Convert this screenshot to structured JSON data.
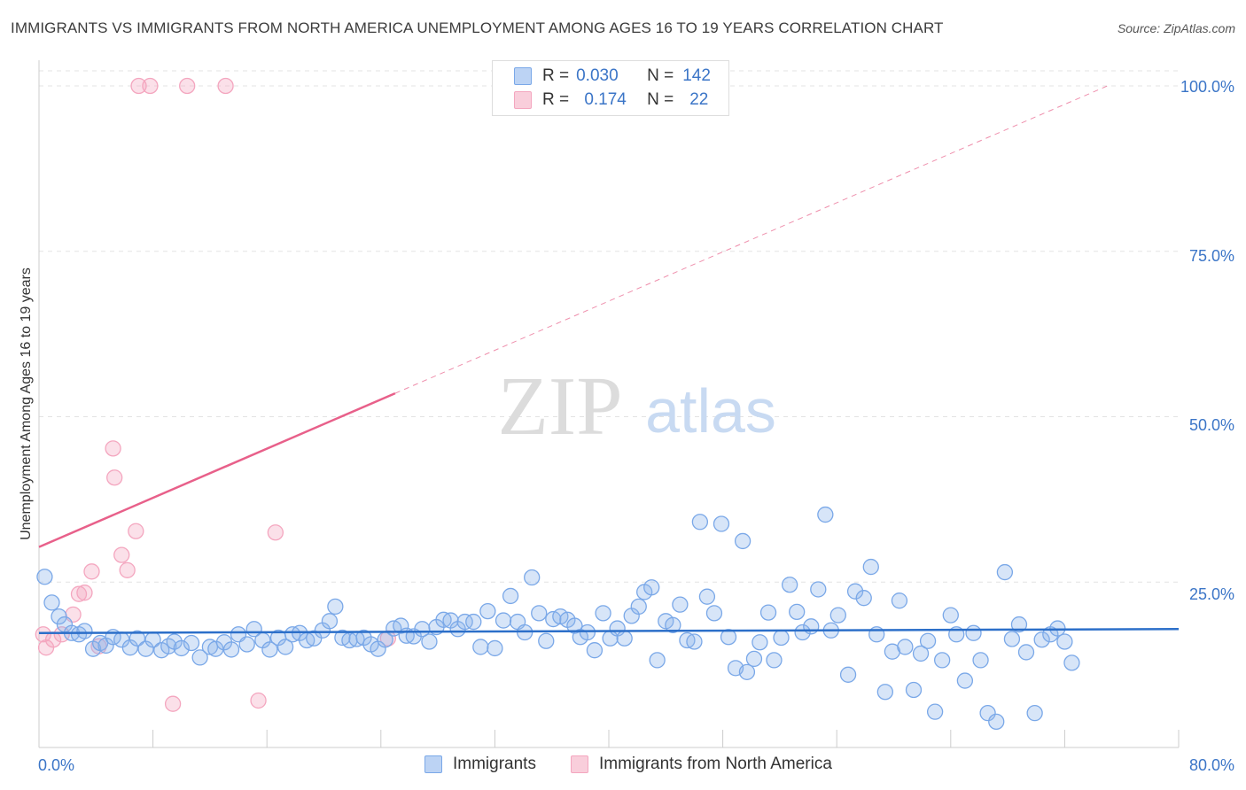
{
  "header": {
    "title": "IMMIGRANTS VS IMMIGRANTS FROM NORTH AMERICA UNEMPLOYMENT AMONG AGES 16 TO 19 YEARS CORRELATION CHART",
    "source": "Source: ZipAtlas.com"
  },
  "watermark": {
    "zip": "ZIP",
    "atlas": "atlas"
  },
  "legend": {
    "r_label": "R =",
    "n_label": "N =",
    "series": [
      {
        "name": "Immigrants",
        "r": "0.030",
        "n": "142"
      },
      {
        "name": "Immigrants from North America",
        "r": "0.174",
        "n": "22"
      }
    ]
  },
  "chart_data": {
    "type": "scatter",
    "title": "IMMIGRANTS VS IMMIGRANTS FROM NORTH AMERICA UNEMPLOYMENT AMONG AGES 16 TO 19 YEARS CORRELATION CHART",
    "xlabel": "",
    "ylabel": "Unemployment Among Ages 16 to 19 years",
    "xlim": [
      0,
      80
    ],
    "ylim": [
      0,
      100
    ],
    "x_tick_labels": [
      "0.0%",
      "80.0%"
    ],
    "y_ticks": [
      25,
      50,
      75,
      100
    ],
    "y_tick_labels": [
      "25.0%",
      "50.0%",
      "75.0%",
      "100.0%"
    ],
    "grid": true,
    "series": [
      {
        "name": "Immigrants",
        "color": "#7aa8e8",
        "line_color": "#2c6fc9",
        "trend": {
          "x0": 0,
          "y0": 17.3,
          "x1": 80,
          "y1": 17.9,
          "dashed_from": null
        },
        "points": [
          [
            0.4,
            25.8
          ],
          [
            0.9,
            21.9
          ],
          [
            1.4,
            19.8
          ],
          [
            1.8,
            18.6
          ],
          [
            2.3,
            17.3
          ],
          [
            2.8,
            17.1
          ],
          [
            3.2,
            17.6
          ],
          [
            3.8,
            14.9
          ],
          [
            4.3,
            15.8
          ],
          [
            4.7,
            15.4
          ],
          [
            5.2,
            16.7
          ],
          [
            5.8,
            16.3
          ],
          [
            6.4,
            15.1
          ],
          [
            6.9,
            16.5
          ],
          [
            7.5,
            14.9
          ],
          [
            8.0,
            16.3
          ],
          [
            8.6,
            14.7
          ],
          [
            9.1,
            15.3
          ],
          [
            9.5,
            16.0
          ],
          [
            10.0,
            15.0
          ],
          [
            10.7,
            15.8
          ],
          [
            11.3,
            13.6
          ],
          [
            12.0,
            15.2
          ],
          [
            12.4,
            14.9
          ],
          [
            13.0,
            15.9
          ],
          [
            13.5,
            14.8
          ],
          [
            14.0,
            17.1
          ],
          [
            14.6,
            15.6
          ],
          [
            15.1,
            17.9
          ],
          [
            15.7,
            16.2
          ],
          [
            16.2,
            14.8
          ],
          [
            16.8,
            16.6
          ],
          [
            17.3,
            15.2
          ],
          [
            17.8,
            17.1
          ],
          [
            18.3,
            17.3
          ],
          [
            18.8,
            16.2
          ],
          [
            19.3,
            16.5
          ],
          [
            19.9,
            17.7
          ],
          [
            20.4,
            19.1
          ],
          [
            20.8,
            21.3
          ],
          [
            21.3,
            16.6
          ],
          [
            21.8,
            16.2
          ],
          [
            22.3,
            16.4
          ],
          [
            22.8,
            16.6
          ],
          [
            23.3,
            15.6
          ],
          [
            23.8,
            14.9
          ],
          [
            24.3,
            16.3
          ],
          [
            24.9,
            18.0
          ],
          [
            25.4,
            18.4
          ],
          [
            25.8,
            16.9
          ],
          [
            26.3,
            16.8
          ],
          [
            26.9,
            17.9
          ],
          [
            27.4,
            16.0
          ],
          [
            27.9,
            18.2
          ],
          [
            28.4,
            19.3
          ],
          [
            28.9,
            19.2
          ],
          [
            29.4,
            17.9
          ],
          [
            29.9,
            19.0
          ],
          [
            30.5,
            19.0
          ],
          [
            31.0,
            15.2
          ],
          [
            31.5,
            20.6
          ],
          [
            32.0,
            15.0
          ],
          [
            32.6,
            19.2
          ],
          [
            33.1,
            22.9
          ],
          [
            33.6,
            19.0
          ],
          [
            34.1,
            17.4
          ],
          [
            34.6,
            25.7
          ],
          [
            35.1,
            20.3
          ],
          [
            35.6,
            16.1
          ],
          [
            36.1,
            19.4
          ],
          [
            36.6,
            19.8
          ],
          [
            37.1,
            19.3
          ],
          [
            37.6,
            18.4
          ],
          [
            38.0,
            16.7
          ],
          [
            38.5,
            17.4
          ],
          [
            39.0,
            14.7
          ],
          [
            39.6,
            20.3
          ],
          [
            40.1,
            16.5
          ],
          [
            40.6,
            18.0
          ],
          [
            41.1,
            16.5
          ],
          [
            41.6,
            19.9
          ],
          [
            42.1,
            21.3
          ],
          [
            42.5,
            23.5
          ],
          [
            43.0,
            24.2
          ],
          [
            43.4,
            13.2
          ],
          [
            44.0,
            19.1
          ],
          [
            44.5,
            18.5
          ],
          [
            45.0,
            21.6
          ],
          [
            45.5,
            16.2
          ],
          [
            46.0,
            16.0
          ],
          [
            46.4,
            34.1
          ],
          [
            46.9,
            22.8
          ],
          [
            47.4,
            20.3
          ],
          [
            47.9,
            33.8
          ],
          [
            48.4,
            16.7
          ],
          [
            48.9,
            12.0
          ],
          [
            49.4,
            31.2
          ],
          [
            49.7,
            11.4
          ],
          [
            50.2,
            13.4
          ],
          [
            50.6,
            15.9
          ],
          [
            51.2,
            20.4
          ],
          [
            51.6,
            13.2
          ],
          [
            52.1,
            16.6
          ],
          [
            52.7,
            24.6
          ],
          [
            53.2,
            20.5
          ],
          [
            53.6,
            17.4
          ],
          [
            54.2,
            18.3
          ],
          [
            54.7,
            23.9
          ],
          [
            55.2,
            35.2
          ],
          [
            55.6,
            17.7
          ],
          [
            56.1,
            20.0
          ],
          [
            56.8,
            11.0
          ],
          [
            57.3,
            23.6
          ],
          [
            57.9,
            22.6
          ],
          [
            58.4,
            27.3
          ],
          [
            58.8,
            17.1
          ],
          [
            59.4,
            8.4
          ],
          [
            59.9,
            14.5
          ],
          [
            60.4,
            22.2
          ],
          [
            60.8,
            15.2
          ],
          [
            61.4,
            8.7
          ],
          [
            61.9,
            14.2
          ],
          [
            62.4,
            16.1
          ],
          [
            62.9,
            5.4
          ],
          [
            63.4,
            13.2
          ],
          [
            64.0,
            20.0
          ],
          [
            64.4,
            17.1
          ],
          [
            65.0,
            10.1
          ],
          [
            65.6,
            17.3
          ],
          [
            66.1,
            13.2
          ],
          [
            66.6,
            5.2
          ],
          [
            67.2,
            3.9
          ],
          [
            67.8,
            26.5
          ],
          [
            68.3,
            16.4
          ],
          [
            68.8,
            18.6
          ],
          [
            69.3,
            14.4
          ],
          [
            69.9,
            5.2
          ],
          [
            70.4,
            16.3
          ],
          [
            71.0,
            17.1
          ],
          [
            71.5,
            18.0
          ],
          [
            72.0,
            16.0
          ],
          [
            72.5,
            12.8
          ]
        ]
      },
      {
        "name": "Immigrants from North America",
        "color": "#f4a6bf",
        "line_color": "#e8608a",
        "trend": {
          "x0": 0,
          "y0": 30.3,
          "x1": 75,
          "y1": 100,
          "dashed_from": 25
        },
        "points": [
          [
            0.3,
            17.1
          ],
          [
            0.5,
            15.1
          ],
          [
            1.0,
            16.3
          ],
          [
            1.6,
            17.1
          ],
          [
            2.4,
            20.1
          ],
          [
            2.8,
            23.2
          ],
          [
            3.2,
            23.4
          ],
          [
            3.7,
            26.6
          ],
          [
            4.2,
            15.3
          ],
          [
            5.2,
            45.2
          ],
          [
            5.3,
            40.8
          ],
          [
            5.8,
            29.1
          ],
          [
            6.2,
            26.8
          ],
          [
            6.8,
            32.7
          ],
          [
            7.0,
            100
          ],
          [
            7.8,
            100
          ],
          [
            9.4,
            6.6
          ],
          [
            10.4,
            100
          ],
          [
            13.1,
            100
          ],
          [
            15.4,
            7.1
          ],
          [
            16.6,
            32.5
          ],
          [
            24.5,
            16.5
          ]
        ]
      }
    ]
  }
}
